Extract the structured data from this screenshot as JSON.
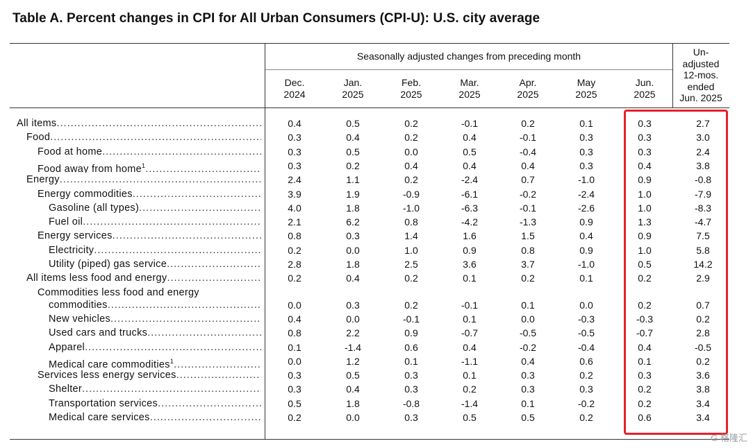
{
  "title": "Table A. Percent changes in CPI for All Urban Consumers (CPI-U): U.S. city average",
  "header": {
    "group_label": "Seasonally adjusted changes from preceding month",
    "unadjusted_label": [
      "Un-",
      "adjusted",
      "12-mos.",
      "ended",
      "Jun. 2025"
    ],
    "months": [
      [
        "Dec.",
        "2024"
      ],
      [
        "Jan.",
        "2025"
      ],
      [
        "Feb.",
        "2025"
      ],
      [
        "Mar.",
        "2025"
      ],
      [
        "Apr.",
        "2025"
      ],
      [
        "May",
        "2025"
      ],
      [
        "Jun.",
        "2025"
      ]
    ]
  },
  "highlight_color": "#e8202a",
  "watermark": "G 格隆汇",
  "chart_data": {
    "type": "table",
    "title": "Table A. Percent changes in CPI for All Urban Consumers (CPI-U): U.S. city average",
    "columns": [
      "Dec. 2024",
      "Jan. 2025",
      "Feb. 2025",
      "Mar. 2025",
      "Apr. 2025",
      "May 2025",
      "Jun. 2025",
      "Un-adjusted 12-mos. ended Jun. 2025"
    ],
    "rows": [
      {
        "label": "All items",
        "indent": 0,
        "values": [
          "0.4",
          "0.5",
          "0.2",
          "-0.1",
          "0.2",
          "0.1",
          "0.3",
          "2.7"
        ]
      },
      {
        "label": "Food",
        "indent": 1,
        "values": [
          "0.3",
          "0.4",
          "0.2",
          "0.4",
          "-0.1",
          "0.3",
          "0.3",
          "3.0"
        ]
      },
      {
        "label": "Food at home",
        "indent": 2,
        "values": [
          "0.3",
          "0.5",
          "0.0",
          "0.5",
          "-0.4",
          "0.3",
          "0.3",
          "2.4"
        ]
      },
      {
        "label": "Food away from home",
        "sup": "1",
        "indent": 2,
        "values": [
          "0.3",
          "0.2",
          "0.4",
          "0.4",
          "0.4",
          "0.3",
          "0.4",
          "3.8"
        ]
      },
      {
        "label": "Energy",
        "indent": 1,
        "values": [
          "2.4",
          "1.1",
          "0.2",
          "-2.4",
          "0.7",
          "-1.0",
          "0.9",
          "-0.8"
        ]
      },
      {
        "label": "Energy commodities",
        "indent": 2,
        "values": [
          "3.9",
          "1.9",
          "-0.9",
          "-6.1",
          "-0.2",
          "-2.4",
          "1.0",
          "-7.9"
        ]
      },
      {
        "label": "Gasoline (all types)",
        "indent": 3,
        "values": [
          "4.0",
          "1.8",
          "-1.0",
          "-6.3",
          "-0.1",
          "-2.6",
          "1.0",
          "-8.3"
        ]
      },
      {
        "label": "Fuel oil",
        "indent": 3,
        "values": [
          "2.1",
          "6.2",
          "0.8",
          "-4.2",
          "-1.3",
          "0.9",
          "1.3",
          "-4.7"
        ]
      },
      {
        "label": "Energy services",
        "indent": 2,
        "values": [
          "0.8",
          "0.3",
          "1.4",
          "1.6",
          "1.5",
          "0.4",
          "0.9",
          "7.5"
        ]
      },
      {
        "label": "Electricity",
        "indent": 3,
        "values": [
          "0.2",
          "0.0",
          "1.0",
          "0.9",
          "0.8",
          "0.9",
          "1.0",
          "5.8"
        ]
      },
      {
        "label": "Utility (piped) gas service",
        "indent": 3,
        "values": [
          "2.8",
          "1.8",
          "2.5",
          "3.6",
          "3.7",
          "-1.0",
          "0.5",
          "14.2"
        ]
      },
      {
        "label": "All items less food and energy",
        "indent": 1,
        "values": [
          "0.2",
          "0.4",
          "0.2",
          "0.1",
          "0.2",
          "0.1",
          "0.2",
          "2.9"
        ]
      },
      {
        "label": "Commodities less food and energy",
        "label2": "commodities",
        "indent": 2,
        "values": [
          "0.0",
          "0.3",
          "0.2",
          "-0.1",
          "0.1",
          "0.0",
          "0.2",
          "0.7"
        ]
      },
      {
        "label": "New vehicles",
        "indent": 3,
        "values": [
          "0.4",
          "0.0",
          "-0.1",
          "0.1",
          "0.0",
          "-0.3",
          "-0.3",
          "0.2"
        ]
      },
      {
        "label": "Used cars and trucks",
        "indent": 3,
        "values": [
          "0.8",
          "2.2",
          "0.9",
          "-0.7",
          "-0.5",
          "-0.5",
          "-0.7",
          "2.8"
        ]
      },
      {
        "label": "Apparel",
        "indent": 3,
        "values": [
          "0.1",
          "-1.4",
          "0.6",
          "0.4",
          "-0.2",
          "-0.4",
          "0.4",
          "-0.5"
        ]
      },
      {
        "label": "Medical care commodities",
        "sup": "1",
        "indent": 3,
        "values": [
          "0.0",
          "1.2",
          "0.1",
          "-1.1",
          "0.4",
          "0.6",
          "0.1",
          "0.2"
        ]
      },
      {
        "label": "Services less energy services",
        "indent": 2,
        "values": [
          "0.3",
          "0.5",
          "0.3",
          "0.1",
          "0.3",
          "0.2",
          "0.3",
          "3.6"
        ]
      },
      {
        "label": "Shelter",
        "indent": 3,
        "values": [
          "0.3",
          "0.4",
          "0.3",
          "0.2",
          "0.3",
          "0.3",
          "0.2",
          "3.8"
        ]
      },
      {
        "label": "Transportation services",
        "indent": 3,
        "values": [
          "0.5",
          "1.8",
          "-0.8",
          "-1.4",
          "0.1",
          "-0.2",
          "0.2",
          "3.4"
        ]
      },
      {
        "label": "Medical care services",
        "indent": 3,
        "values": [
          "0.2",
          "0.0",
          "0.3",
          "0.5",
          "0.5",
          "0.2",
          "0.6",
          "3.4"
        ]
      }
    ]
  }
}
